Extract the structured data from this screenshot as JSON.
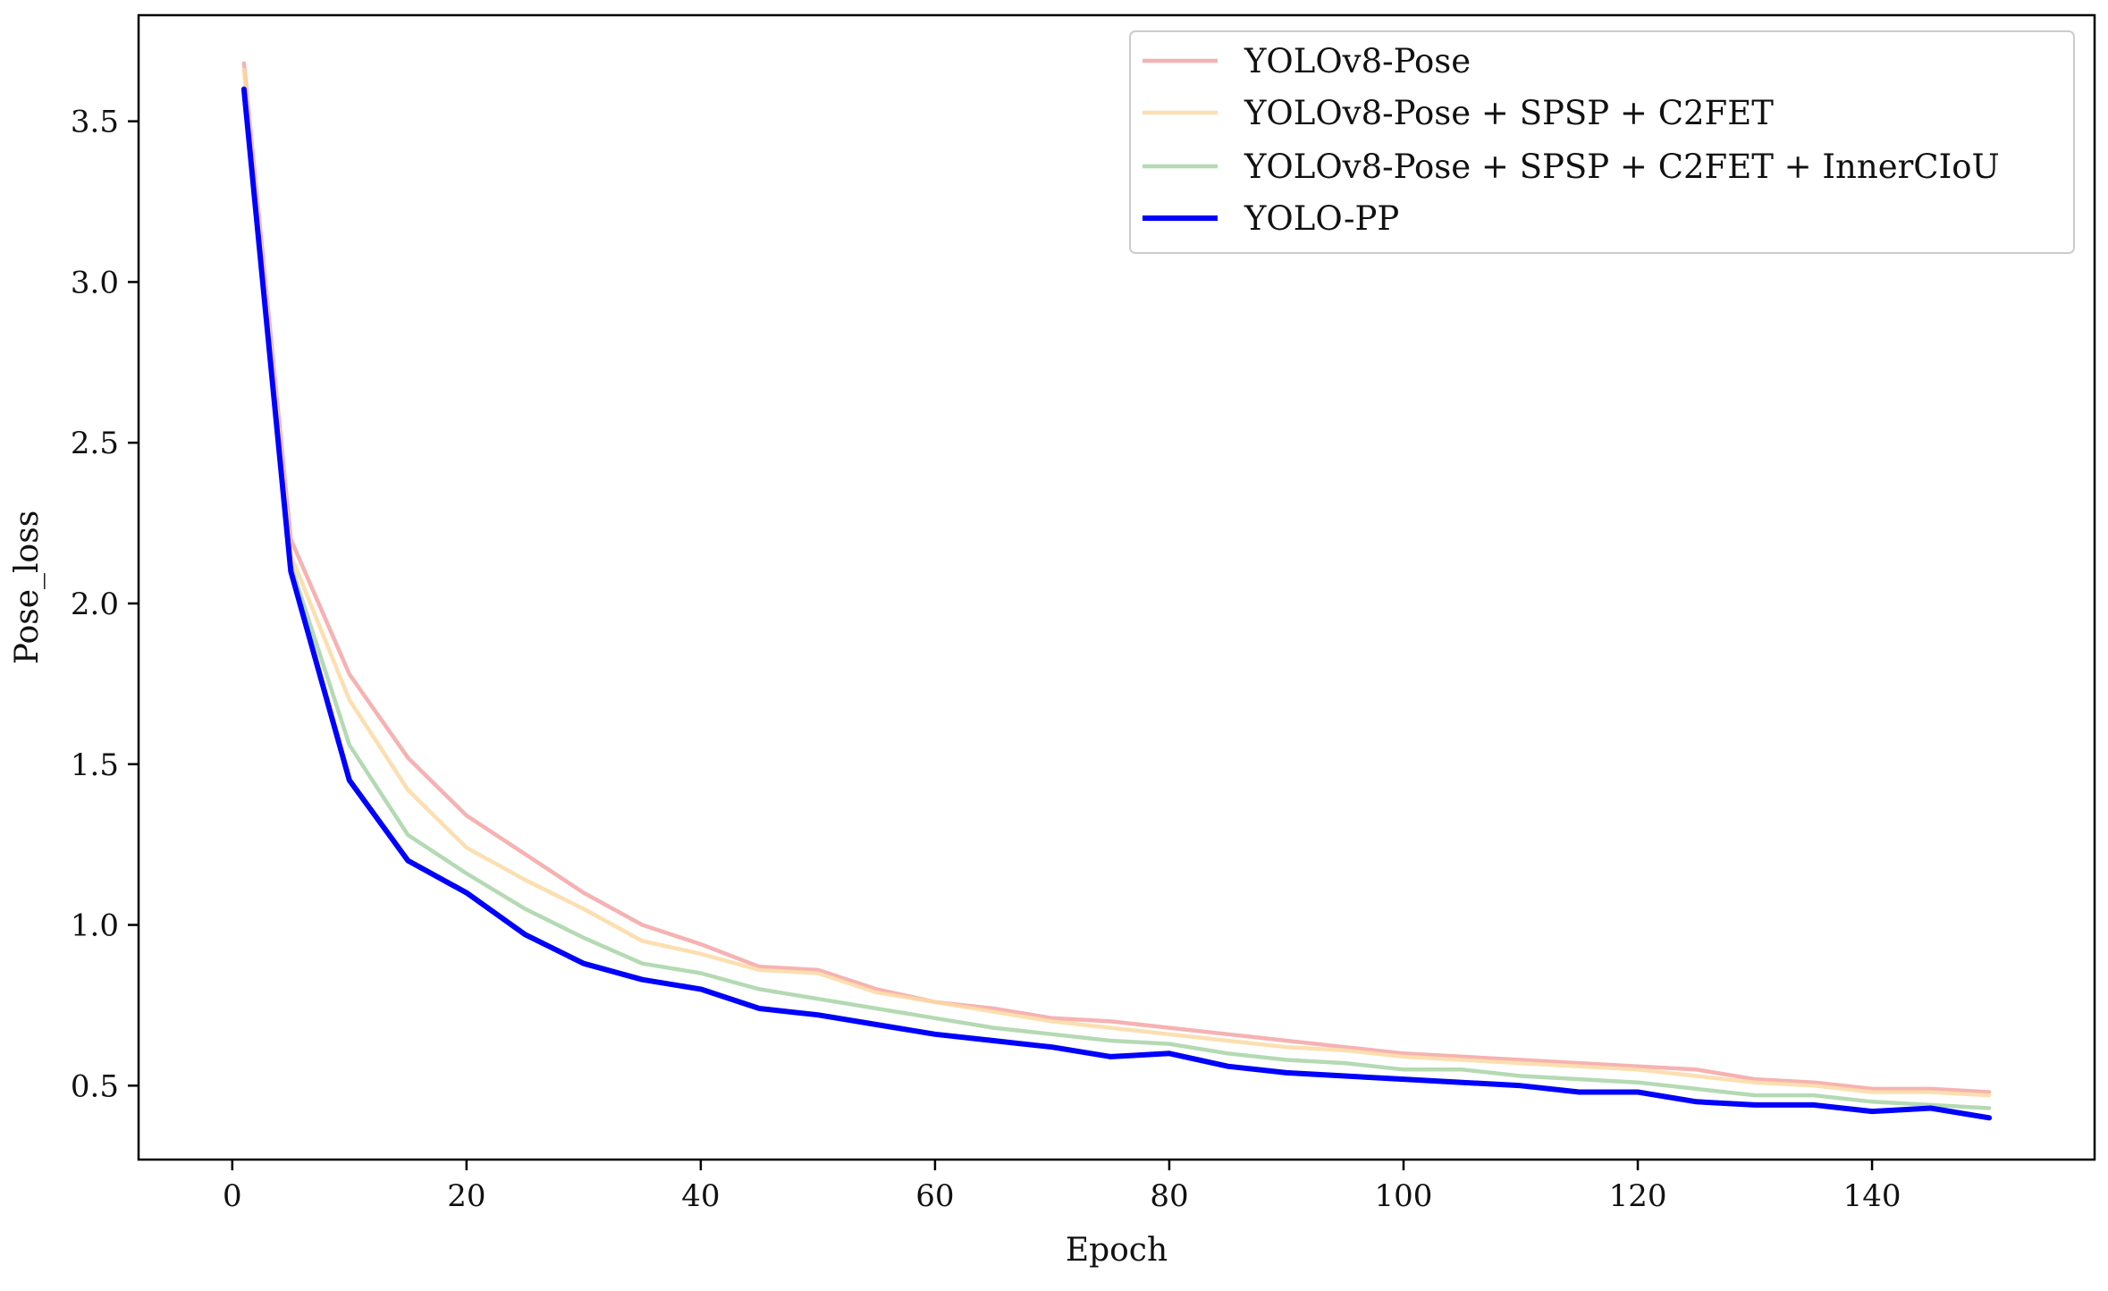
{
  "chart_data": {
    "type": "line",
    "title": "",
    "xlabel": "Epoch",
    "ylabel": "Pose_loss",
    "xlim": [
      -8,
      159
    ],
    "ylim": [
      0.27,
      3.83
    ],
    "xticks": [
      0,
      20,
      40,
      60,
      80,
      100,
      120,
      140
    ],
    "xtick_labels": [
      "0",
      "20",
      "40",
      "60",
      "80",
      "100",
      "120",
      "140"
    ],
    "yticks": [
      0.5,
      1.0,
      1.5,
      2.0,
      2.5,
      3.0,
      3.5
    ],
    "ytick_labels": [
      "0.5",
      "1.0",
      "1.5",
      "2.0",
      "2.5",
      "3.0",
      "3.5"
    ],
    "grid": false,
    "legend_position": "top-right",
    "x": [
      1,
      5,
      10,
      15,
      20,
      25,
      30,
      35,
      40,
      45,
      50,
      55,
      60,
      65,
      70,
      75,
      80,
      85,
      90,
      95,
      100,
      105,
      110,
      115,
      120,
      125,
      130,
      135,
      140,
      145,
      150
    ],
    "series": [
      {
        "name": "YOLOv8-Pose",
        "color": "#f4a5a5",
        "values": [
          3.68,
          2.2,
          1.78,
          1.52,
          1.34,
          1.22,
          1.1,
          1.0,
          0.94,
          0.87,
          0.86,
          0.8,
          0.76,
          0.74,
          0.71,
          0.7,
          0.68,
          0.66,
          0.64,
          0.62,
          0.6,
          0.59,
          0.58,
          0.57,
          0.56,
          0.55,
          0.52,
          0.51,
          0.49,
          0.49,
          0.48
        ]
      },
      {
        "name": "YOLOv8-Pose + SPSP + C2FET",
        "color": "#fbd9a3",
        "values": [
          3.66,
          2.15,
          1.7,
          1.42,
          1.24,
          1.14,
          1.05,
          0.95,
          0.91,
          0.86,
          0.85,
          0.79,
          0.76,
          0.73,
          0.7,
          0.68,
          0.66,
          0.64,
          0.62,
          0.61,
          0.59,
          0.58,
          0.57,
          0.56,
          0.55,
          0.53,
          0.51,
          0.5,
          0.48,
          0.48,
          0.47
        ]
      },
      {
        "name": "YOLOv8-Pose + SPSP + C2FET + InnerCIoU",
        "color": "#a7d3a6",
        "values": [
          3.6,
          2.12,
          1.56,
          1.28,
          1.16,
          1.05,
          0.96,
          0.88,
          0.85,
          0.8,
          0.77,
          0.74,
          0.71,
          0.68,
          0.66,
          0.64,
          0.63,
          0.6,
          0.58,
          0.57,
          0.55,
          0.55,
          0.53,
          0.52,
          0.51,
          0.49,
          0.47,
          0.47,
          0.45,
          0.44,
          0.43
        ]
      },
      {
        "name": "YOLO-PP",
        "color": "#0000ff",
        "values": [
          3.6,
          2.1,
          1.45,
          1.2,
          1.1,
          0.97,
          0.88,
          0.83,
          0.8,
          0.74,
          0.72,
          0.69,
          0.66,
          0.64,
          0.62,
          0.59,
          0.6,
          0.56,
          0.54,
          0.53,
          0.52,
          0.51,
          0.5,
          0.48,
          0.48,
          0.45,
          0.44,
          0.44,
          0.42,
          0.43,
          0.4
        ]
      }
    ]
  }
}
